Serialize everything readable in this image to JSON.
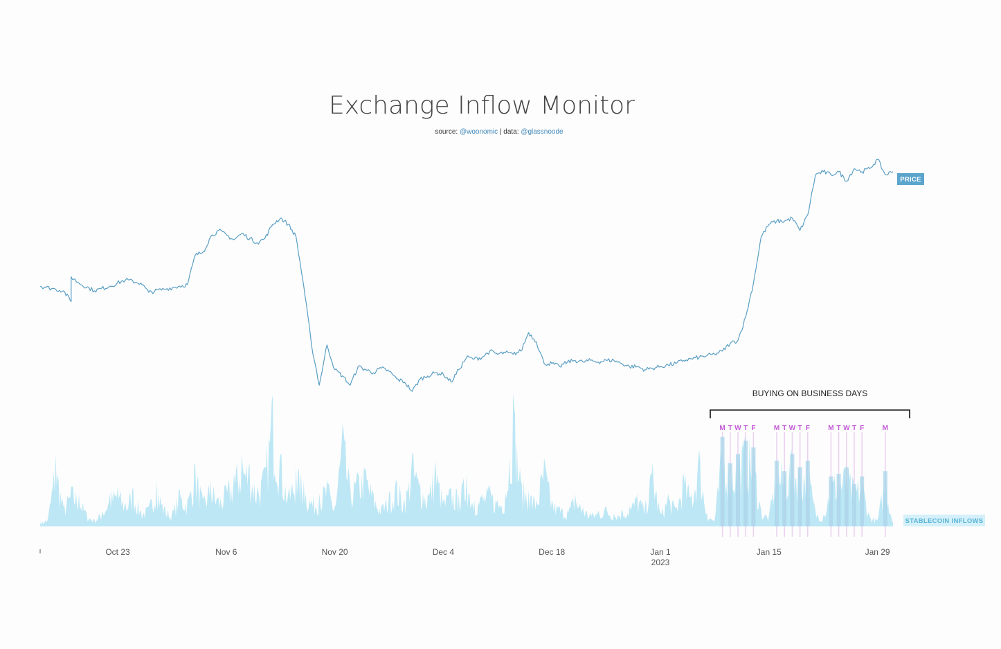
{
  "header": {
    "title": "Exchange Inflow Monitor",
    "source_prefix": "source:",
    "source_handle": "@woonomic",
    "separator": "| data:",
    "data_handle": "@glassnoode"
  },
  "colors": {
    "price_line": "#5a9ec4",
    "inflow_fill": "#bde7f5",
    "highlight_fill": "#a8d5ea",
    "day_label": "#c259d6",
    "day_line": "#ead0f0",
    "price_badge": "#5ba4cc",
    "inflow_badge": "#d4f0fa"
  },
  "chart_data": {
    "type": "line",
    "x_axis": {
      "start": "2022-10-13",
      "end": "2023-02-02",
      "ticks": [
        {
          "date": "2022-10-23",
          "label": "Oct 23",
          "sublabel": ""
        },
        {
          "date": "2022-11-06",
          "label": "Nov 6",
          "sublabel": ""
        },
        {
          "date": "2022-11-20",
          "label": "Nov 20",
          "sublabel": ""
        },
        {
          "date": "2022-12-04",
          "label": "Dec 4",
          "sublabel": ""
        },
        {
          "date": "2022-12-18",
          "label": "Dec 18",
          "sublabel": ""
        },
        {
          "date": "2023-01-01",
          "label": "Jan 1",
          "sublabel": "2023"
        },
        {
          "date": "2023-01-15",
          "label": "Jan 15",
          "sublabel": ""
        },
        {
          "date": "2023-01-29",
          "label": "Jan 29",
          "sublabel": ""
        }
      ]
    },
    "series": [
      {
        "name": "PRICE",
        "kind": "line",
        "points": [
          [
            "2022-10-13",
            19200
          ],
          [
            "2022-10-15",
            19100
          ],
          [
            "2022-10-16",
            19050
          ],
          [
            "2022-10-17",
            18700
          ],
          [
            "2022-10-17",
            19500
          ],
          [
            "2022-10-18",
            19300
          ],
          [
            "2022-10-20",
            19050
          ],
          [
            "2022-10-22",
            19200
          ],
          [
            "2022-10-24",
            19400
          ],
          [
            "2022-10-26",
            19300
          ],
          [
            "2022-10-27",
            19000
          ],
          [
            "2022-10-29",
            19100
          ],
          [
            "2022-10-31",
            19200
          ],
          [
            "2022-11-01",
            19250
          ],
          [
            "2022-11-02",
            20200
          ],
          [
            "2022-11-03",
            20300
          ],
          [
            "2022-11-04",
            20800
          ],
          [
            "2022-11-05",
            21000
          ],
          [
            "2022-11-07",
            20700
          ],
          [
            "2022-11-08",
            20900
          ],
          [
            "2022-11-10",
            20600
          ],
          [
            "2022-11-11",
            20750
          ],
          [
            "2022-11-12",
            21200
          ],
          [
            "2022-11-13",
            21400
          ],
          [
            "2022-11-14",
            21200
          ],
          [
            "2022-11-15",
            20800
          ],
          [
            "2022-11-16",
            19200
          ],
          [
            "2022-11-17",
            17300
          ],
          [
            "2022-11-18",
            16000
          ],
          [
            "2022-11-19",
            17300
          ],
          [
            "2022-11-20",
            16500
          ],
          [
            "2022-11-21",
            16300
          ],
          [
            "2022-11-22",
            16000
          ],
          [
            "2022-11-23",
            16600
          ],
          [
            "2022-11-24",
            16500
          ],
          [
            "2022-11-25",
            16400
          ],
          [
            "2022-11-26",
            16550
          ],
          [
            "2022-11-27",
            16450
          ],
          [
            "2022-11-28",
            16200
          ],
          [
            "2022-11-29",
            16100
          ],
          [
            "2022-11-30",
            15800
          ],
          [
            "2022-12-01",
            16200
          ],
          [
            "2022-12-02",
            16300
          ],
          [
            "2022-12-03",
            16400
          ],
          [
            "2022-12-04",
            16350
          ],
          [
            "2022-12-05",
            16100
          ],
          [
            "2022-12-06",
            16500
          ],
          [
            "2022-12-07",
            16900
          ],
          [
            "2022-12-08",
            16850
          ],
          [
            "2022-12-09",
            16900
          ],
          [
            "2022-12-10",
            17100
          ],
          [
            "2022-12-11",
            17000
          ],
          [
            "2022-12-12",
            17050
          ],
          [
            "2022-12-13",
            17000
          ],
          [
            "2022-12-14",
            17100
          ],
          [
            "2022-12-15",
            17700
          ],
          [
            "2022-12-16",
            17400
          ],
          [
            "2022-12-17",
            16700
          ],
          [
            "2022-12-18",
            16700
          ],
          [
            "2022-12-19",
            16600
          ],
          [
            "2022-12-20",
            16750
          ],
          [
            "2022-12-21",
            16800
          ],
          [
            "2022-12-22",
            16750
          ],
          [
            "2022-12-23",
            16800
          ],
          [
            "2022-12-24",
            16750
          ],
          [
            "2022-12-25",
            16800
          ],
          [
            "2022-12-26",
            16800
          ],
          [
            "2022-12-27",
            16700
          ],
          [
            "2022-12-28",
            16600
          ],
          [
            "2022-12-29",
            16600
          ],
          [
            "2022-12-30",
            16500
          ],
          [
            "2022-12-31",
            16550
          ],
          [
            "2023-01-01",
            16600
          ],
          [
            "2023-01-02",
            16650
          ],
          [
            "2023-01-03",
            16700
          ],
          [
            "2023-01-04",
            16800
          ],
          [
            "2023-01-05",
            16850
          ],
          [
            "2023-01-06",
            16900
          ],
          [
            "2023-01-07",
            16950
          ],
          [
            "2023-01-08",
            17000
          ],
          [
            "2023-01-09",
            17100
          ],
          [
            "2023-01-10",
            17350
          ],
          [
            "2023-01-11",
            17450
          ],
          [
            "2023-01-12",
            18200
          ],
          [
            "2023-01-13",
            19300
          ],
          [
            "2023-01-14",
            20800
          ],
          [
            "2023-01-15",
            21200
          ],
          [
            "2023-01-16",
            21300
          ],
          [
            "2023-01-17",
            21300
          ],
          [
            "2023-01-18",
            21400
          ],
          [
            "2023-01-19",
            21000
          ],
          [
            "2023-01-20",
            21500
          ],
          [
            "2023-01-21",
            22800
          ],
          [
            "2023-01-22",
            22900
          ],
          [
            "2023-01-23",
            22800
          ],
          [
            "2023-01-24",
            22900
          ],
          [
            "2023-01-25",
            22600
          ],
          [
            "2023-01-26",
            23000
          ],
          [
            "2023-01-27",
            22900
          ],
          [
            "2023-01-28",
            23000
          ],
          [
            "2023-01-29",
            23300
          ],
          [
            "2023-01-30",
            22800
          ],
          [
            "2023-01-31",
            22900
          ]
        ]
      },
      {
        "name": "STABLECOIN INFLOWS",
        "kind": "area",
        "points": [
          [
            "2022-10-13",
            3
          ],
          [
            "2022-10-14",
            6
          ],
          [
            "2022-10-15",
            55
          ],
          [
            "2022-10-16",
            15
          ],
          [
            "2022-10-17",
            30
          ],
          [
            "2022-10-18",
            25
          ],
          [
            "2022-10-19",
            10
          ],
          [
            "2022-10-20",
            5
          ],
          [
            "2022-10-21",
            12
          ],
          [
            "2022-10-22",
            25
          ],
          [
            "2022-10-23",
            30
          ],
          [
            "2022-10-24",
            18
          ],
          [
            "2022-10-25",
            30
          ],
          [
            "2022-10-26",
            12
          ],
          [
            "2022-10-27",
            15
          ],
          [
            "2022-10-28",
            35
          ],
          [
            "2022-10-29",
            15
          ],
          [
            "2022-10-30",
            10
          ],
          [
            "2022-10-31",
            28
          ],
          [
            "2022-11-01",
            20
          ],
          [
            "2022-11-02",
            48
          ],
          [
            "2022-11-03",
            20
          ],
          [
            "2022-11-04",
            35
          ],
          [
            "2022-11-05",
            22
          ],
          [
            "2022-11-06",
            30
          ],
          [
            "2022-11-07",
            40
          ],
          [
            "2022-11-08",
            55
          ],
          [
            "2022-11-09",
            48
          ],
          [
            "2022-11-10",
            30
          ],
          [
            "2022-11-11",
            45
          ],
          [
            "2022-11-12",
            100
          ],
          [
            "2022-11-13",
            55
          ],
          [
            "2022-11-14",
            25
          ],
          [
            "2022-11-15",
            45
          ],
          [
            "2022-11-16",
            35
          ],
          [
            "2022-11-17",
            20
          ],
          [
            "2022-11-18",
            25
          ],
          [
            "2022-11-19",
            35
          ],
          [
            "2022-11-20",
            15
          ],
          [
            "2022-11-21",
            78
          ],
          [
            "2022-11-22",
            30
          ],
          [
            "2022-11-23",
            40
          ],
          [
            "2022-11-24",
            45
          ],
          [
            "2022-11-25",
            25
          ],
          [
            "2022-11-26",
            15
          ],
          [
            "2022-11-27",
            25
          ],
          [
            "2022-11-28",
            35
          ],
          [
            "2022-11-29",
            20
          ],
          [
            "2022-11-30",
            55
          ],
          [
            "2022-12-01",
            35
          ],
          [
            "2022-12-02",
            25
          ],
          [
            "2022-12-03",
            50
          ],
          [
            "2022-12-04",
            20
          ],
          [
            "2022-12-05",
            30
          ],
          [
            "2022-12-06",
            25
          ],
          [
            "2022-12-07",
            40
          ],
          [
            "2022-12-08",
            20
          ],
          [
            "2022-12-09",
            25
          ],
          [
            "2022-12-10",
            30
          ],
          [
            "2022-12-11",
            20
          ],
          [
            "2022-12-12",
            25
          ],
          [
            "2022-12-13",
            102
          ],
          [
            "2022-12-14",
            35
          ],
          [
            "2022-12-15",
            28
          ],
          [
            "2022-12-16",
            20
          ],
          [
            "2022-12-17",
            52
          ],
          [
            "2022-12-18",
            20
          ],
          [
            "2022-12-19",
            15
          ],
          [
            "2022-12-20",
            12
          ],
          [
            "2022-12-21",
            25
          ],
          [
            "2022-12-22",
            15
          ],
          [
            "2022-12-23",
            10
          ],
          [
            "2022-12-24",
            12
          ],
          [
            "2022-12-25",
            15
          ],
          [
            "2022-12-26",
            10
          ],
          [
            "2022-12-27",
            12
          ],
          [
            "2022-12-28",
            15
          ],
          [
            "2022-12-29",
            25
          ],
          [
            "2022-12-30",
            15
          ],
          [
            "2022-12-31",
            48
          ],
          [
            "2023-01-01",
            10
          ],
          [
            "2023-01-02",
            25
          ],
          [
            "2023-01-03",
            15
          ],
          [
            "2023-01-04",
            40
          ],
          [
            "2023-01-05",
            25
          ],
          [
            "2023-01-06",
            58
          ],
          [
            "2023-01-07",
            10
          ],
          [
            "2023-01-08",
            5
          ],
          [
            "2023-01-09",
            68
          ],
          [
            "2023-01-10",
            48
          ],
          [
            "2023-01-11",
            55
          ],
          [
            "2023-01-12",
            65
          ],
          [
            "2023-01-13",
            60
          ],
          [
            "2023-01-14",
            12
          ],
          [
            "2023-01-15",
            8
          ],
          [
            "2023-01-16",
            50
          ],
          [
            "2023-01-17",
            42
          ],
          [
            "2023-01-18",
            55
          ],
          [
            "2023-01-19",
            45
          ],
          [
            "2023-01-20",
            50
          ],
          [
            "2023-01-21",
            12
          ],
          [
            "2023-01-22",
            8
          ],
          [
            "2023-01-23",
            38
          ],
          [
            "2023-01-24",
            40
          ],
          [
            "2023-01-25",
            45
          ],
          [
            "2023-01-26",
            32
          ],
          [
            "2023-01-27",
            38
          ],
          [
            "2023-01-28",
            8
          ],
          [
            "2023-01-29",
            5
          ],
          [
            "2023-01-30",
            42
          ],
          [
            "2023-01-31",
            3
          ]
        ]
      }
    ],
    "annotations": {
      "bracket_label": "BUYING ON BUSINESS DAYS",
      "business_days": [
        {
          "date": "2023-01-09",
          "label": "M"
        },
        {
          "date": "2023-01-10",
          "label": "T"
        },
        {
          "date": "2023-01-11",
          "label": "W"
        },
        {
          "date": "2023-01-12",
          "label": "T"
        },
        {
          "date": "2023-01-13",
          "label": "F"
        },
        {
          "date": "2023-01-16",
          "label": "M"
        },
        {
          "date": "2023-01-17",
          "label": "T"
        },
        {
          "date": "2023-01-18",
          "label": "W"
        },
        {
          "date": "2023-01-19",
          "label": "T"
        },
        {
          "date": "2023-01-20",
          "label": "F"
        },
        {
          "date": "2023-01-23",
          "label": "M"
        },
        {
          "date": "2023-01-24",
          "label": "T"
        },
        {
          "date": "2023-01-25",
          "label": "W"
        },
        {
          "date": "2023-01-26",
          "label": "T"
        },
        {
          "date": "2023-01-27",
          "label": "F"
        },
        {
          "date": "2023-01-30",
          "label": "M"
        }
      ]
    },
    "grid": false,
    "legend": "inline-right"
  }
}
